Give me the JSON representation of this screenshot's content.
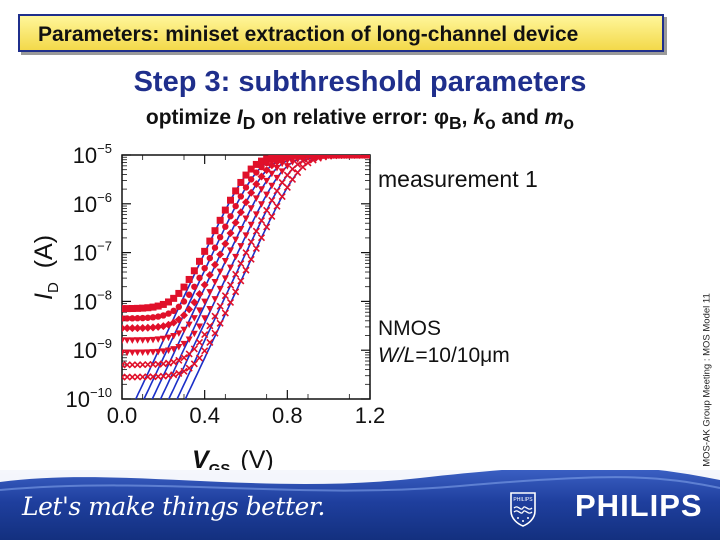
{
  "header": {
    "title": "Parameters: miniset extraction of long-channel device"
  },
  "slide": {
    "title": "Step 3: subthreshold parameters",
    "subtitle_prefix": "optimize ",
    "subtitle_I": "I",
    "subtitle_D": "D",
    "subtitle_mid": " on relative error: ",
    "subtitle_phi": "φ",
    "subtitle_B": "B",
    "subtitle_sep1": ", ",
    "subtitle_k": "k",
    "subtitle_ko": "o",
    "subtitle_and": " and ",
    "subtitle_m": "m",
    "subtitle_mo": "o"
  },
  "side_label": "MOS-AK Group Meeting : MOS Model 11",
  "footer": {
    "slogan": "Let's make things better.",
    "brand": "PHILIPS",
    "shield_text": "PHILIPS"
  },
  "chart_data": {
    "type": "scatter",
    "xlabel": {
      "main": "V",
      "sub": "GS",
      "unit": "(V)"
    },
    "ylabel": {
      "main": "I",
      "sub": "D",
      "unit": "(A)"
    },
    "xlim": [
      0.0,
      1.2
    ],
    "ylim_log10": [
      -10,
      -5
    ],
    "x_ticks": [
      "0.0",
      "0.4",
      "0.8",
      "1.2"
    ],
    "y_ticks": [
      {
        "base": "10",
        "exp": "−5"
      },
      {
        "base": "10",
        "exp": "−6"
      },
      {
        "base": "10",
        "exp": "−7"
      },
      {
        "base": "10",
        "exp": "−8"
      },
      {
        "base": "10",
        "exp": "−9"
      },
      {
        "base": "10",
        "exp": "−10"
      }
    ],
    "annotation_measurement": "measurement 1",
    "annotation_device_line1": "NMOS",
    "annotation_device_line2_prefix": "W/L",
    "annotation_device_line2_value": "=10/10",
    "annotation_device_line2_unit": "μm",
    "model_color": "#1b2fc8",
    "measured_color": "#e0102a",
    "series": [
      {
        "vth_shift": 0.0,
        "floor": -8.15,
        "marker": "square"
      },
      {
        "vth_shift": 0.04,
        "floor": -8.35,
        "marker": "circle"
      },
      {
        "vth_shift": 0.08,
        "floor": -8.55,
        "marker": "diamond"
      },
      {
        "vth_shift": 0.12,
        "floor": -8.8,
        "marker": "triangle"
      },
      {
        "vth_shift": 0.16,
        "floor": -9.05,
        "marker": "triangle"
      },
      {
        "vth_shift": 0.2,
        "floor": -9.3,
        "marker": "cross"
      },
      {
        "vth_shift": 0.24,
        "floor": -9.55,
        "marker": "cross"
      }
    ]
  }
}
